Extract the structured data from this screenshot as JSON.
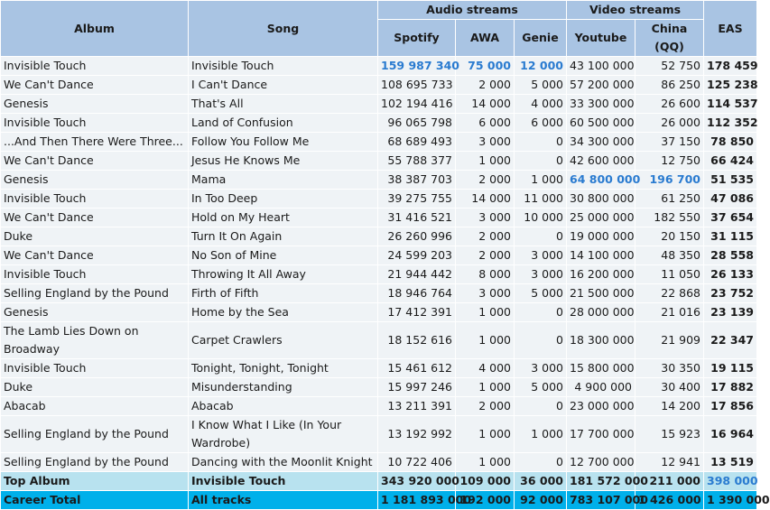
{
  "headers": {
    "album": "Album",
    "song": "Song",
    "audio_group": "Audio streams",
    "video_group": "Video streams",
    "spotify": "Spotify",
    "awa": "AWA",
    "genie": "Genie",
    "youtube": "Youtube",
    "china": "China (QQ)",
    "eas": "EAS"
  },
  "rows": [
    {
      "album": "Invisible Touch",
      "song": "Invisible Touch",
      "spotify": "159 987 340",
      "awa": "75 000",
      "genie": "12 000",
      "youtube": "43 100 000",
      "china": "52 750",
      "eas": "178 459"
    },
    {
      "album": "We Can't Dance",
      "song": "I Can't Dance",
      "spotify": "108 695 733",
      "awa": "2 000",
      "genie": "5 000",
      "youtube": "57 200 000",
      "china": "86 250",
      "eas": "125 238"
    },
    {
      "album": "Genesis",
      "song": "That's All",
      "spotify": "102 194 416",
      "awa": "14 000",
      "genie": "4 000",
      "youtube": "33 300 000",
      "china": "26 600",
      "eas": "114 537"
    },
    {
      "album": "Invisible Touch",
      "song": "Land of Confusion",
      "spotify": "96 065 798",
      "awa": "6 000",
      "genie": "6 000",
      "youtube": "60 500 000",
      "china": "26 000",
      "eas": "112 352"
    },
    {
      "album": "...And Then There Were Three...",
      "song": "Follow You Follow Me",
      "spotify": "68 689 493",
      "awa": "3 000",
      "genie": "0",
      "youtube": "34 300 000",
      "china": "37 150",
      "eas": "78 850"
    },
    {
      "album": "We Can't Dance",
      "song": "Jesus He Knows Me",
      "spotify": "55 788 377",
      "awa": "1 000",
      "genie": "0",
      "youtube": "42 600 000",
      "china": "12 750",
      "eas": "66 424"
    },
    {
      "album": "Genesis",
      "song": "Mama",
      "spotify": "38 387 703",
      "awa": "2 000",
      "genie": "1 000",
      "youtube": "64 800 000",
      "china": "196 700",
      "eas": "51 535"
    },
    {
      "album": "Invisible Touch",
      "song": "In Too Deep",
      "spotify": "39 275 755",
      "awa": "14 000",
      "genie": "11 000",
      "youtube": "30 800 000",
      "china": "61 250",
      "eas": "47 086"
    },
    {
      "album": "We Can't Dance",
      "song": "Hold on My Heart",
      "spotify": "31 416 521",
      "awa": "3 000",
      "genie": "10 000",
      "youtube": "25 000 000",
      "china": "182 550",
      "eas": "37 654"
    },
    {
      "album": "Duke",
      "song": "Turn It On Again",
      "spotify": "26 260 996",
      "awa": "2 000",
      "genie": "0",
      "youtube": "19 000 000",
      "china": "20 150",
      "eas": "31 115"
    },
    {
      "album": "We Can't Dance",
      "song": "No Son of Mine",
      "spotify": "24 599 203",
      "awa": "2 000",
      "genie": "3 000",
      "youtube": "14 100 000",
      "china": "48 350",
      "eas": "28 558"
    },
    {
      "album": "Invisible Touch",
      "song": "Throwing It All Away",
      "spotify": "21 944 442",
      "awa": "8 000",
      "genie": "3 000",
      "youtube": "16 200 000",
      "china": "11 050",
      "eas": "26 133"
    },
    {
      "album": "Selling England by the Pound",
      "song": "Firth of Fifth",
      "spotify": "18 946 764",
      "awa": "3 000",
      "genie": "5 000",
      "youtube": "21 500 000",
      "china": "22 868",
      "eas": "23 752"
    },
    {
      "album": "Genesis",
      "song": "Home by the Sea",
      "spotify": "17 412 391",
      "awa": "1 000",
      "genie": "0",
      "youtube": "28 000 000",
      "china": "21 016",
      "eas": "23 139"
    },
    {
      "album": "The Lamb Lies Down on Broadway",
      "song": "Carpet Crawlers",
      "spotify": "18 152 616",
      "awa": "1 000",
      "genie": "0",
      "youtube": "18 300 000",
      "china": "21 909",
      "eas": "22 347"
    },
    {
      "album": "Invisible Touch",
      "song": "Tonight, Tonight, Tonight",
      "spotify": "15 461 612",
      "awa": "4 000",
      "genie": "3 000",
      "youtube": "15 800 000",
      "china": "30 350",
      "eas": "19 115"
    },
    {
      "album": "Duke",
      "song": "Misunderstanding",
      "spotify": "15 997 246",
      "awa": "1 000",
      "genie": "5 000",
      "youtube": "4 900 000",
      "china": "30 400",
      "eas": "17 882"
    },
    {
      "album": "Abacab",
      "song": "Abacab",
      "spotify": "13 211 391",
      "awa": "2 000",
      "genie": "0",
      "youtube": "23 000 000",
      "china": "14 200",
      "eas": "17 856"
    },
    {
      "album": "Selling England by the Pound",
      "song": "I Know What I Like (In Your Wardrobe)",
      "spotify": "13 192 992",
      "awa": "1 000",
      "genie": "1 000",
      "youtube": "17 700 000",
      "china": "15 923",
      "eas": "16 964"
    },
    {
      "album": "Selling England by the Pound",
      "song": "Dancing with the Moonlit Knight",
      "spotify": "10 722 406",
      "awa": "1 000",
      "genie": "0",
      "youtube": "12 700 000",
      "china": "12 941",
      "eas": "13 519"
    }
  ],
  "top_album": {
    "album": "Top Album",
    "song": "Invisible Touch",
    "spotify": "343 920 000",
    "awa": "109 000",
    "genie": "36 000",
    "youtube": "181 572 000",
    "china": "211 000",
    "eas": "398 000"
  },
  "career_total": {
    "album": "Career Total",
    "song": "All tracks",
    "spotify": "1 181 893 000",
    "awa": "192 000",
    "genie": "92 000",
    "youtube": "783 107 000",
    "china": "1 426 000",
    "eas": "1 390 000"
  },
  "colors": {
    "header": "#a9c4e3",
    "row": "#eff3f6",
    "top_album": "#b8e2ef",
    "career_total": "#00b0ea",
    "highlight": "#2a7bd0"
  }
}
